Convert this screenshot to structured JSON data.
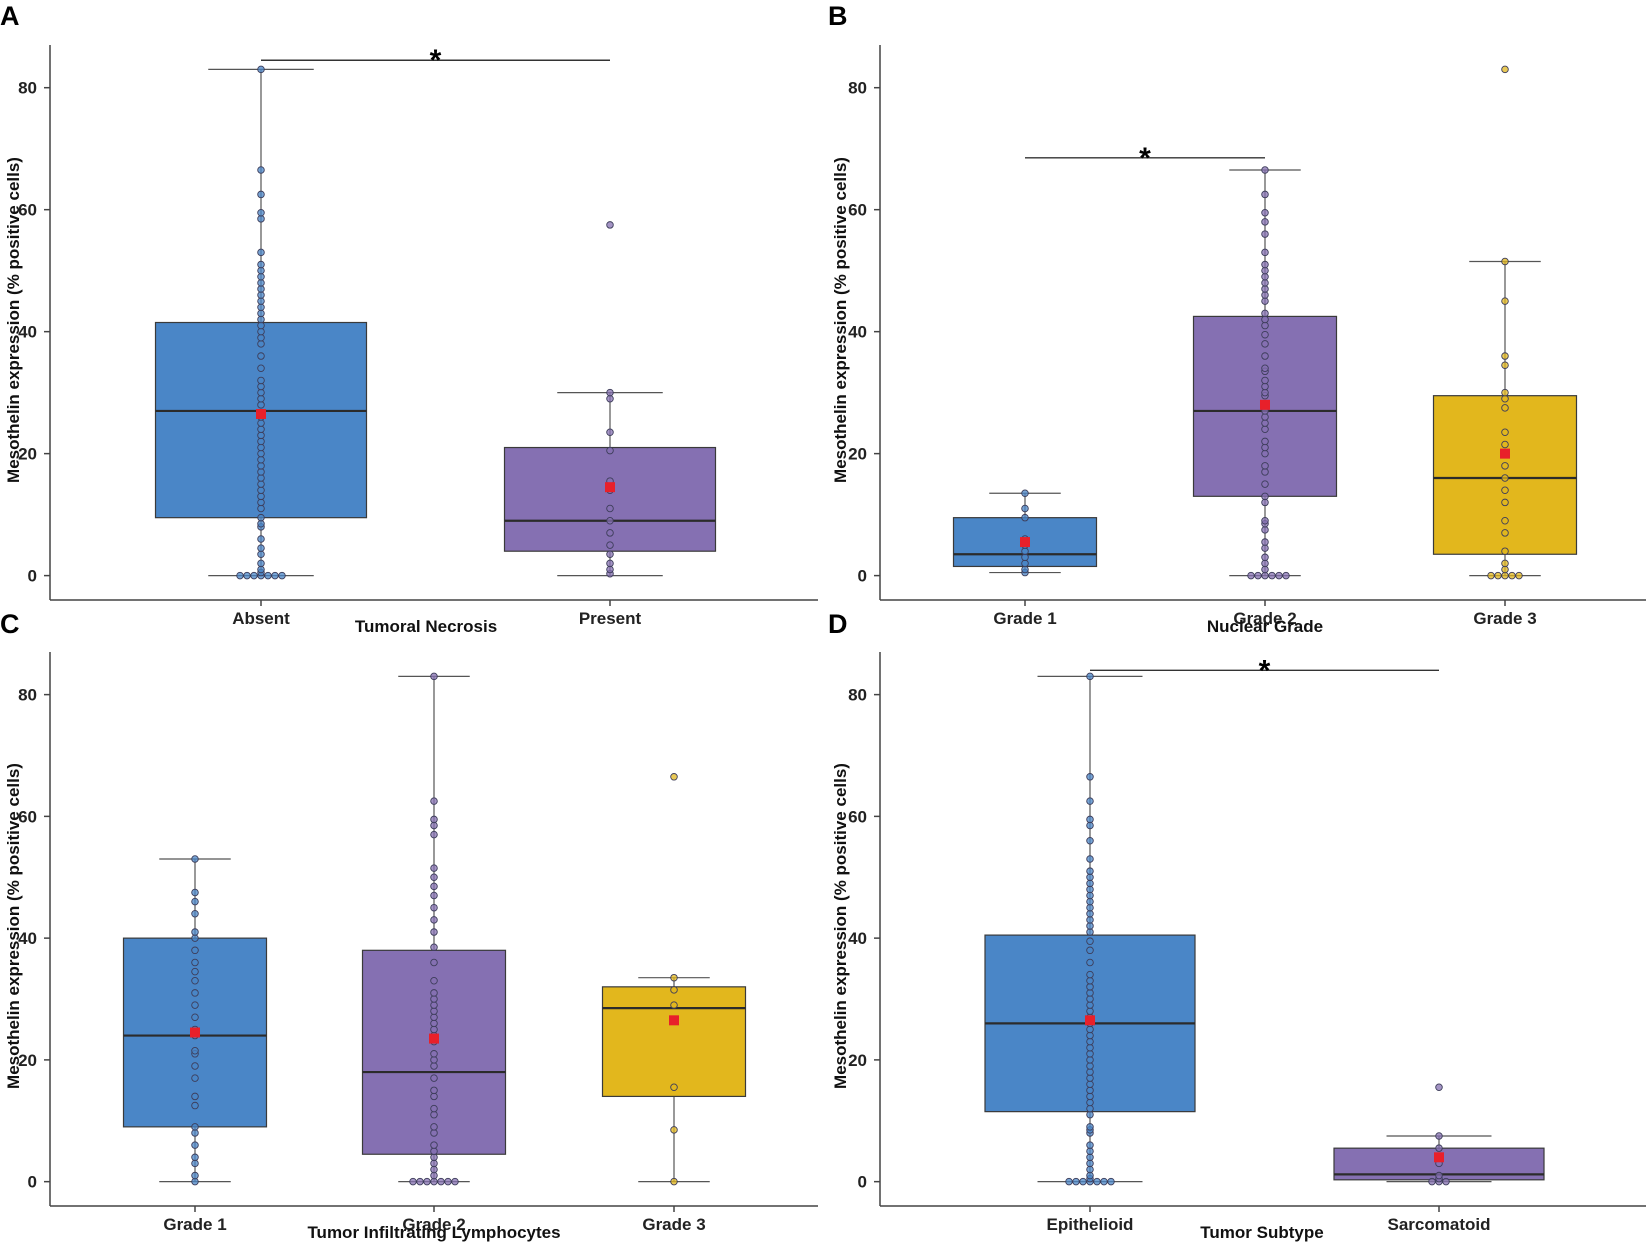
{
  "colors": {
    "blue": "#4a86c7",
    "purple": "#8570b2",
    "yellow": "#e2b71d",
    "mean_marker": "#e8202a"
  },
  "chart_data": [
    {
      "panel": "A",
      "type": "box",
      "xlabel": "Tumoral Necrosis",
      "ylabel": "Mesothelin expression (% positive cells)",
      "ylim": [
        -4,
        87
      ],
      "yticks": [
        0,
        20,
        40,
        60,
        80
      ],
      "significance": [
        {
          "from": 0,
          "to": 1,
          "label": "*",
          "y": 84.5
        }
      ],
      "groups": [
        {
          "name": "Absent",
          "color": "#4a86c7",
          "whisker_low": 0,
          "q1": 9.5,
          "median": 27,
          "q3": 41.5,
          "whisker_high": 83,
          "mean": 26.5,
          "points": [
            0,
            0,
            0,
            0,
            0,
            0,
            0,
            0.5,
            1,
            2,
            3.5,
            4.5,
            6,
            8,
            8.5,
            9.5,
            11,
            12,
            13,
            14,
            15,
            16,
            17,
            18,
            19,
            20,
            21,
            22,
            23,
            24,
            25,
            26,
            28,
            29,
            30,
            31,
            32,
            34,
            36,
            38,
            39,
            40,
            41,
            42,
            43,
            44,
            45,
            46,
            47,
            48,
            49,
            50,
            51,
            53,
            58.5,
            59.5,
            62.5,
            66.5,
            83
          ]
        },
        {
          "name": "Present",
          "color": "#8570b2",
          "whisker_low": 0,
          "q1": 4,
          "median": 9,
          "q3": 21,
          "whisker_high": 30,
          "mean": 14.5,
          "points": [
            0.3,
            1,
            2,
            3.5,
            5,
            7,
            9,
            11,
            14,
            15.5,
            20.5,
            23.5,
            29,
            30,
            57.5
          ]
        }
      ]
    },
    {
      "panel": "B",
      "type": "box",
      "xlabel": "Nuclear Grade",
      "ylabel": "Mesothelin expression (% positive cells)",
      "ylim": [
        -4,
        87
      ],
      "yticks": [
        0,
        20,
        40,
        60,
        80
      ],
      "significance": [
        {
          "from": 0,
          "to": 1,
          "label": "*",
          "y": 68.5
        }
      ],
      "groups": [
        {
          "name": "Grade 1",
          "color": "#4a86c7",
          "whisker_low": 0.5,
          "q1": 1.5,
          "median": 3.5,
          "q3": 9.5,
          "whisker_high": 13.5,
          "mean": 5.5,
          "points": [
            0.5,
            1,
            2,
            3,
            4,
            5,
            6,
            9.5,
            11,
            13.5
          ]
        },
        {
          "name": "Grade 2",
          "color": "#8570b2",
          "whisker_low": 0,
          "q1": 13,
          "median": 27,
          "q3": 42.5,
          "whisker_high": 66.5,
          "mean": 28,
          "points": [
            0,
            0,
            0,
            0,
            0,
            0,
            1,
            2,
            3,
            4.5,
            5.5,
            7.5,
            8.5,
            9,
            12,
            13,
            15,
            17,
            18,
            20,
            21,
            22,
            24,
            25,
            26,
            27,
            28,
            29.5,
            30,
            31,
            32,
            33.5,
            34,
            36,
            38,
            39.5,
            41,
            42,
            43,
            45,
            46,
            47,
            48,
            49,
            50,
            51,
            53,
            56,
            58,
            59.5,
            62.5,
            66.5
          ]
        },
        {
          "name": "Grade 3",
          "color": "#e2b71d",
          "whisker_low": 0,
          "q1": 3.5,
          "median": 16,
          "q3": 29.5,
          "whisker_high": 51.5,
          "mean": 20,
          "points": [
            0,
            0,
            0,
            0,
            0,
            1,
            2,
            4,
            7,
            9,
            12,
            14,
            16,
            18,
            20,
            21.5,
            23.5,
            27.5,
            29,
            30,
            34.5,
            36,
            45,
            51.5,
            83
          ]
        }
      ]
    },
    {
      "panel": "C",
      "type": "box",
      "xlabel": "Tumor Infiltrating Lymphocytes",
      "ylabel": "Mesothelin expression (% positive cells)",
      "ylim": [
        -4,
        87
      ],
      "yticks": [
        0,
        20,
        40,
        60,
        80
      ],
      "significance": [],
      "groups": [
        {
          "name": "Grade 1",
          "color": "#4a86c7",
          "whisker_low": 0,
          "q1": 9,
          "median": 24,
          "q3": 40,
          "whisker_high": 53,
          "mean": 24.5,
          "points": [
            0,
            1,
            3,
            4,
            6,
            8,
            9,
            12.5,
            14,
            17,
            19,
            21,
            21.5,
            24,
            25,
            27,
            29,
            31,
            33,
            34.5,
            36,
            38,
            40,
            41,
            44,
            46,
            47.5,
            53
          ]
        },
        {
          "name": "Grade 2",
          "color": "#8570b2",
          "whisker_low": 0,
          "q1": 4.5,
          "median": 18,
          "q3": 38,
          "whisker_high": 83,
          "mean": 23.5,
          "points": [
            0,
            0,
            0,
            0,
            0,
            0,
            0,
            1,
            2,
            3,
            4,
            5,
            6,
            8,
            9,
            11,
            12,
            14,
            15,
            17,
            19,
            20,
            21,
            23,
            24,
            25,
            26,
            27,
            28,
            29,
            30,
            31,
            33,
            36,
            38.5,
            41,
            43,
            45,
            47,
            48.5,
            50,
            51.5,
            57,
            58.5,
            59.5,
            62.5,
            83
          ]
        },
        {
          "name": "Grade 3",
          "color": "#e2b71d",
          "whisker_low": 0,
          "q1": 14,
          "median": 28.5,
          "q3": 32,
          "whisker_high": 33.5,
          "mean": 26.5,
          "points": [
            0,
            8.5,
            15.5,
            26.5,
            29,
            31.5,
            33.5,
            66.5
          ]
        }
      ]
    },
    {
      "panel": "D",
      "type": "box",
      "xlabel": "Tumor Subtype",
      "ylabel": "Mesothelin expression (% positive cells)",
      "ylim": [
        -4,
        87
      ],
      "yticks": [
        0,
        20,
        40,
        60,
        80
      ],
      "significance": [
        {
          "from": 0,
          "to": 1,
          "label": "*",
          "y": 84
        }
      ],
      "groups": [
        {
          "name": "Epithelioid",
          "color": "#4a86c7",
          "whisker_low": 0,
          "q1": 11.5,
          "median": 26,
          "q3": 40.5,
          "whisker_high": 83,
          "mean": 26.5,
          "points": [
            0,
            0,
            0,
            0,
            0,
            0,
            0,
            0.5,
            1,
            2,
            3,
            4,
            5,
            6,
            8,
            8.5,
            9,
            11,
            12,
            13,
            14,
            15,
            16,
            17,
            18,
            19,
            20,
            21,
            22,
            23,
            24,
            25,
            26,
            27,
            28,
            29,
            30,
            31,
            32,
            33,
            34,
            36,
            38,
            39.5,
            41,
            42,
            43,
            44,
            45,
            46,
            47,
            48,
            49,
            50,
            51,
            53,
            56,
            58.5,
            59.5,
            62.5,
            66.5,
            83
          ]
        },
        {
          "name": "Sarcomatoid",
          "color": "#8570b2",
          "whisker_low": 0,
          "q1": 0.3,
          "median": 1.2,
          "q3": 5.5,
          "whisker_high": 7.5,
          "mean": 4,
          "points": [
            0,
            0,
            0,
            0.5,
            1,
            3,
            5.5,
            7.5,
            15.5
          ]
        }
      ]
    }
  ]
}
